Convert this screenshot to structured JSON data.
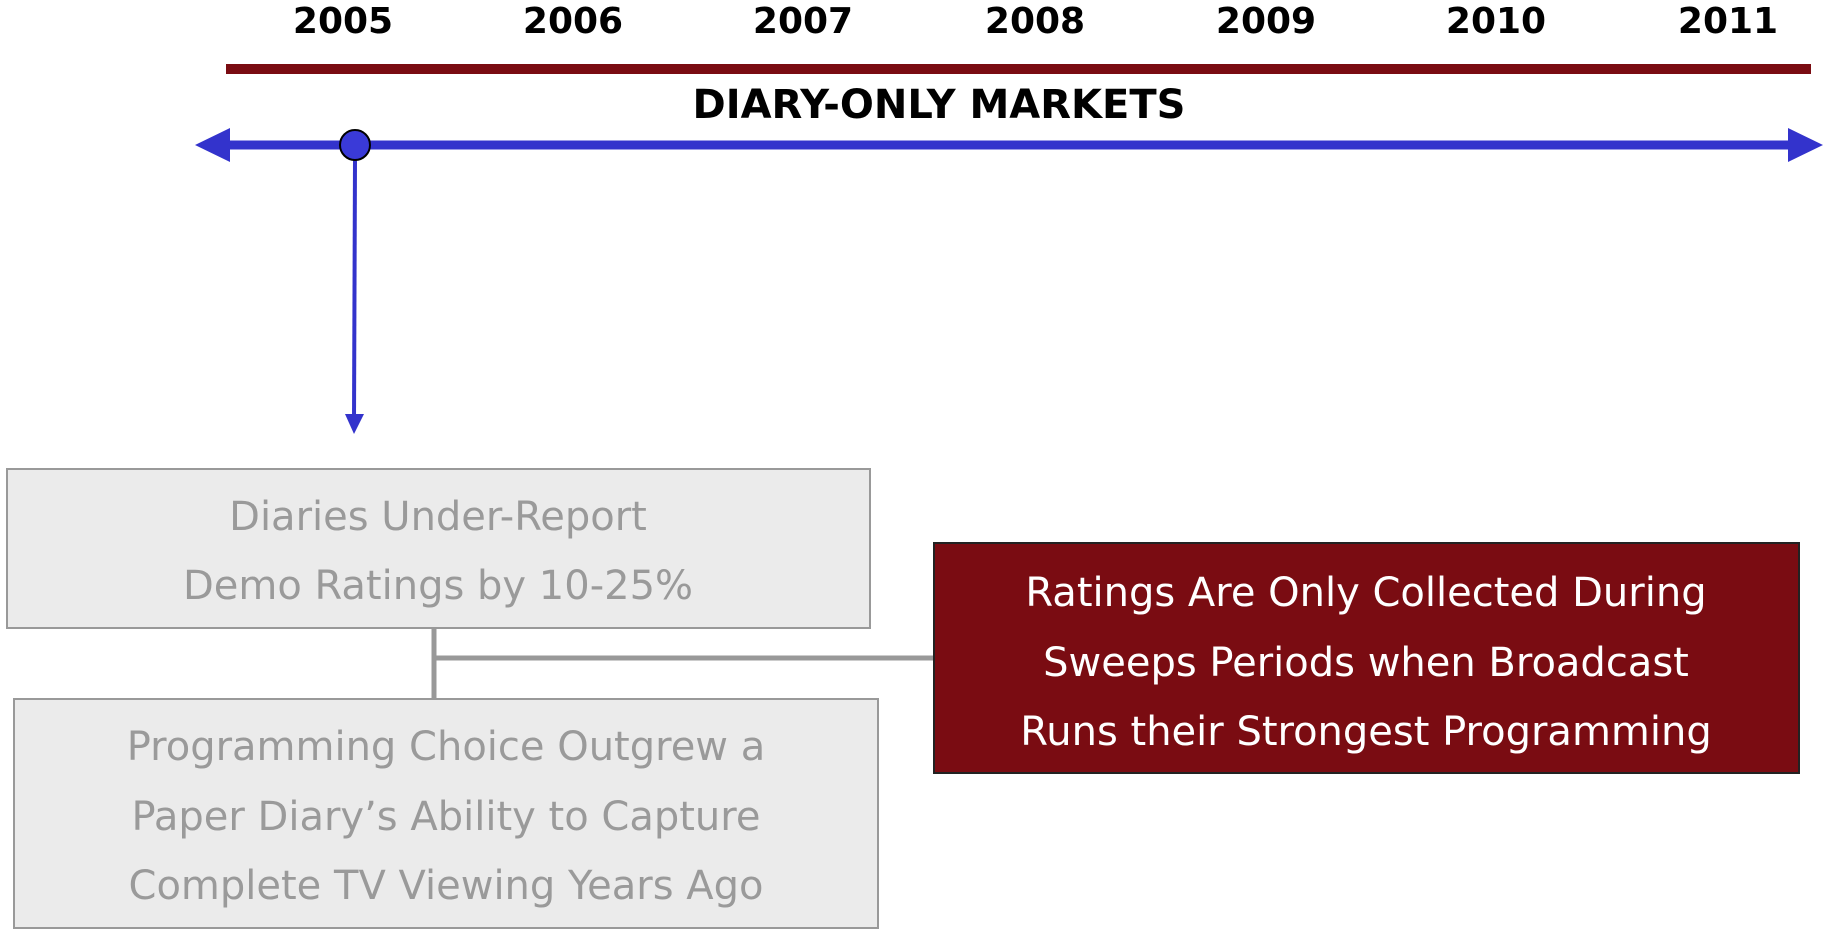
{
  "timeline": {
    "years": [
      "2005",
      "2006",
      "2007",
      "2008",
      "2009",
      "2010",
      "2011"
    ],
    "label": "DIARY-ONLY MARKETS"
  },
  "boxes": [
    {
      "lines": [
        "Diaries Under-Report",
        "Demo Ratings by 10-25%"
      ]
    },
    {
      "lines": [
        "Programming Choice Outgrew a",
        "Paper Diary’s Ability to Capture",
        "Complete TV Viewing Years Ago"
      ]
    },
    {
      "lines": [
        "Ratings Are Only Collected During",
        "Sweeps Periods when Broadcast",
        "Runs their Strongest Programming"
      ]
    }
  ]
}
